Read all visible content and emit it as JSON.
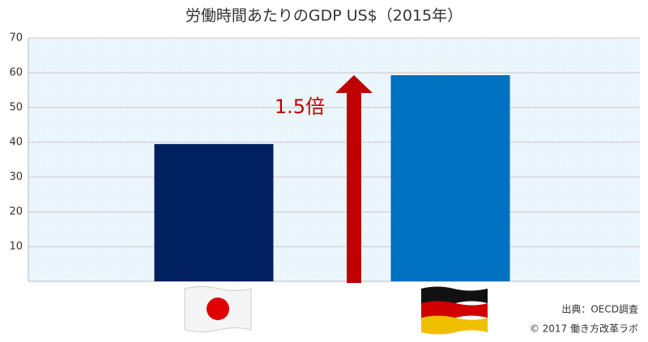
{
  "chart_data": {
    "type": "bar",
    "title": "労働時間あたりのGDP US$（2015年）",
    "categories": [
      null,
      null
    ],
    "series": [
      {
        "values": [
          39.5,
          59.3
        ],
        "colors": [
          "#002060",
          "#0070c0"
        ]
      }
    ],
    "ylim": [
      0,
      70
    ],
    "yticks": [
      10,
      20,
      30,
      40,
      50,
      60,
      70
    ],
    "grid": true,
    "annotation": "1.5倍",
    "source": "出典：OECD調査",
    "copyright": "© 2017 働き方改革ラボ"
  }
}
